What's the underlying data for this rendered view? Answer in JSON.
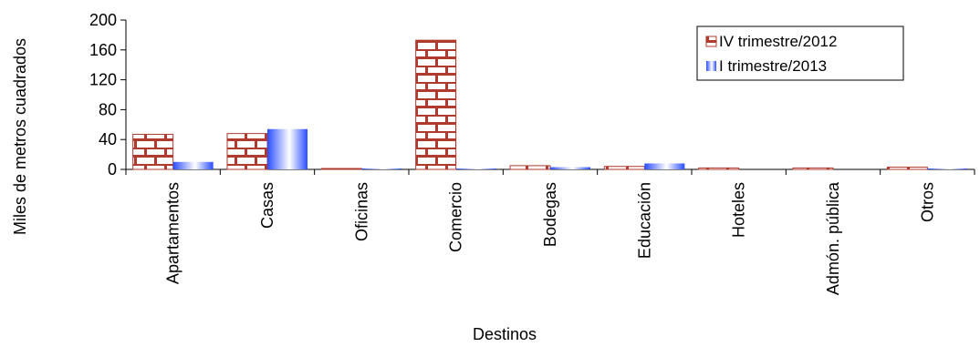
{
  "chart_data": {
    "type": "bar",
    "categories": [
      "Apartamentos",
      "Casas",
      "Oficinas",
      "Comercio",
      "Bodegas",
      "Educación",
      "Hoteles",
      "Admón. pública",
      "Otros"
    ],
    "series": [
      {
        "name": "IV trimestre/2012",
        "values": [
          47,
          48,
          0.5,
          173,
          5,
          4,
          2,
          2,
          3
        ],
        "color": "#b03a2e",
        "pattern": "brick"
      },
      {
        "name": "I trimestre/2013",
        "values": [
          10,
          54,
          0.5,
          1,
          3,
          8,
          0,
          0,
          1
        ],
        "color": "#3366ff",
        "pattern": "cylinder-gradient"
      }
    ],
    "xlabel": "Destinos",
    "ylabel": "Miles de metros cuadrados",
    "ylim": [
      0,
      200
    ],
    "yticks": [
      0,
      40,
      80,
      120,
      160,
      200
    ],
    "grid": false,
    "legend_position": "top-right"
  }
}
